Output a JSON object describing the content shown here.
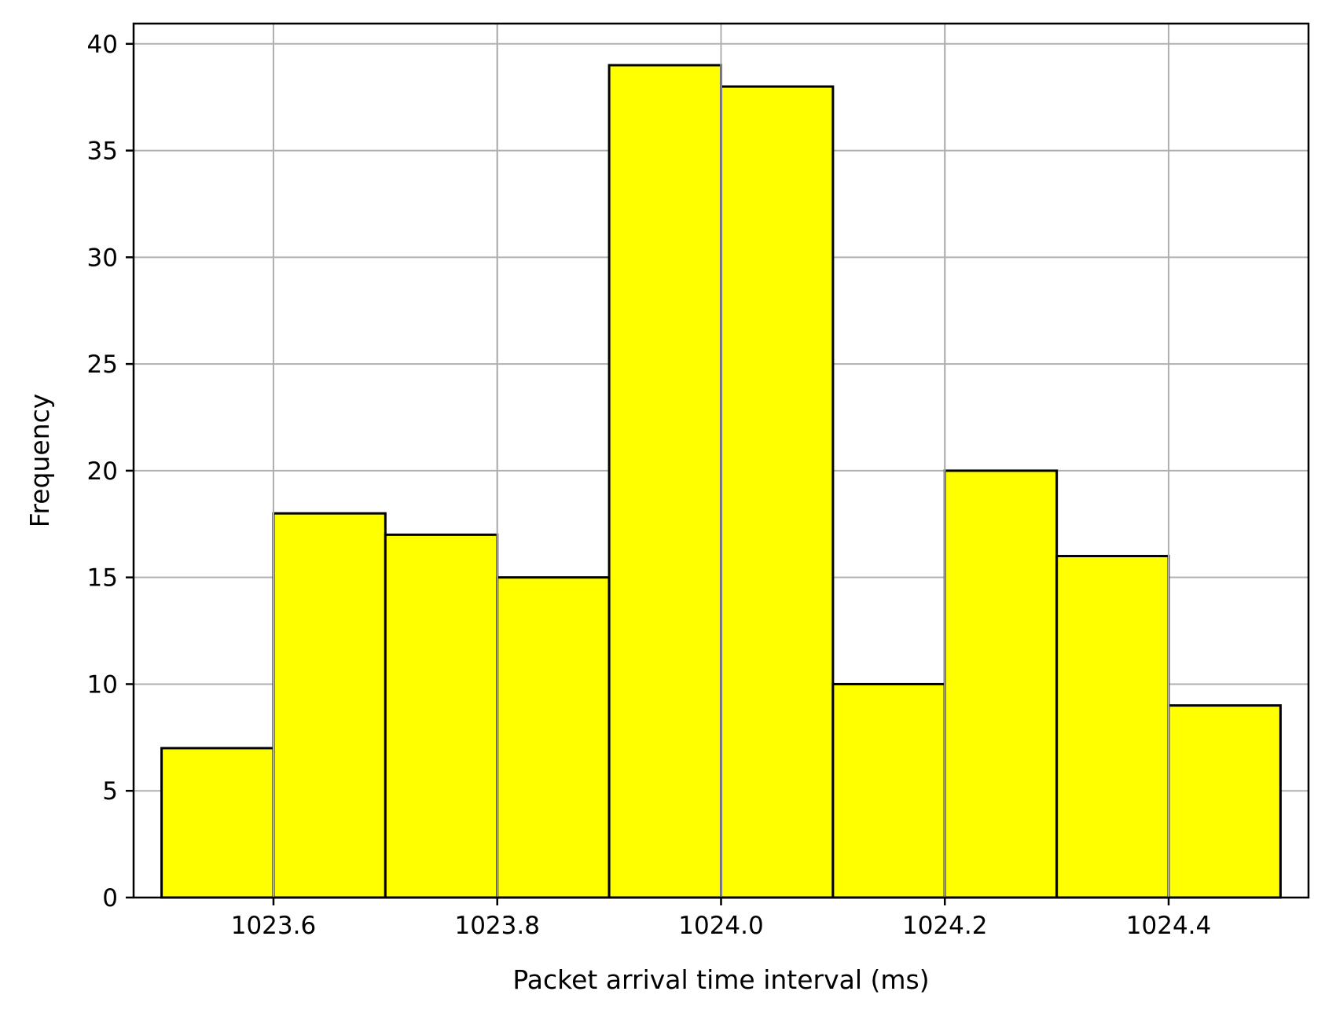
{
  "chart_data": {
    "type": "bar",
    "title": "",
    "xlabel": "Packet arrival time interval (ms)",
    "ylabel": "Frequency",
    "bins": [
      {
        "x0": 1023.5,
        "x1": 1023.6,
        "count": 7
      },
      {
        "x0": 1023.6,
        "x1": 1023.7,
        "count": 18
      },
      {
        "x0": 1023.7,
        "x1": 1023.8,
        "count": 17
      },
      {
        "x0": 1023.8,
        "x1": 1023.9,
        "count": 15
      },
      {
        "x0": 1023.9,
        "x1": 1024.0,
        "count": 39
      },
      {
        "x0": 1024.0,
        "x1": 1024.1,
        "count": 38
      },
      {
        "x0": 1024.1,
        "x1": 1024.2,
        "count": 10
      },
      {
        "x0": 1024.2,
        "x1": 1024.3,
        "count": 20
      },
      {
        "x0": 1024.3,
        "x1": 1024.4,
        "count": 16
      },
      {
        "x0": 1024.4,
        "x1": 1024.5,
        "count": 9
      }
    ],
    "xlim": [
      1023.475,
      1024.525
    ],
    "ylim": [
      0,
      40.95
    ],
    "xticks": [
      1023.6,
      1023.8,
      1024.0,
      1024.2,
      1024.4
    ],
    "xtick_labels": [
      "1023.6",
      "1023.8",
      "1024.0",
      "1024.2",
      "1024.4"
    ],
    "yticks": [
      0,
      5,
      10,
      15,
      20,
      25,
      30,
      35,
      40
    ],
    "ytick_labels": [
      "0",
      "5",
      "10",
      "15",
      "20",
      "25",
      "30",
      "35",
      "40"
    ],
    "grid": true,
    "bar_color": "#ffff00",
    "edge_color": "#000000"
  }
}
